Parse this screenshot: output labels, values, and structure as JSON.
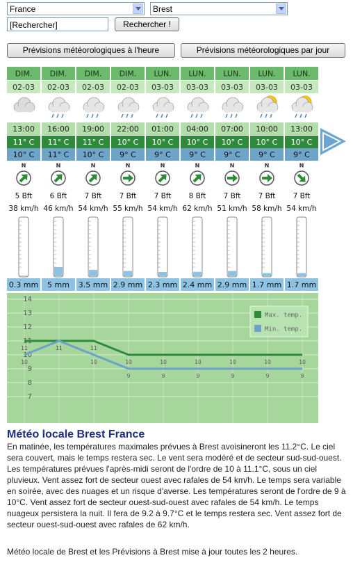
{
  "controls": {
    "country": "France",
    "city": "Brest",
    "search_input": "[Rechercher]",
    "search_button": "Rechercher !",
    "hourly_button": "Prévisions météorologiques à l'heure",
    "daily_button": "Prévisions météorologiques par jour"
  },
  "forecast": {
    "days": [
      "DIM.",
      "DIM.",
      "DIM.",
      "DIM.",
      "LUN.",
      "LUN.",
      "LUN.",
      "LUN.",
      "LUN."
    ],
    "dates": [
      "02-03",
      "02-03",
      "02-03",
      "02-03",
      "03-03",
      "03-03",
      "03-03",
      "03-03",
      "03-03"
    ],
    "times": [
      "13:00",
      "16:00",
      "19:00",
      "22:00",
      "01:00",
      "04:00",
      "07:00",
      "10:00",
      "13:00"
    ],
    "max_temps": [
      "11° C",
      "11° C",
      "11° C",
      "10° C",
      "10° C",
      "10° C",
      "10° C",
      "10° C",
      "10° C"
    ],
    "min_temps": [
      "10° C",
      "11° C",
      "10° C",
      "9° C",
      "9° C",
      "9° C",
      "9° C",
      "9° C",
      "9° C"
    ],
    "compass_label": "N",
    "beaufort": [
      "5 Bft",
      "6 Bft",
      "7 Bft",
      "7 Bft",
      "7 Bft",
      "8 Bft",
      "7 Bft",
      "7 Bft",
      "7 Bft"
    ],
    "wind_speeds": [
      "38 km/h",
      "46 km/h",
      "54 km/h",
      "55 km/h",
      "54 km/h",
      "62 km/h",
      "51 km/h",
      "58 km/h",
      "54 km/h"
    ],
    "rain": {
      "values": [
        0.3,
        5,
        3.5,
        2.9,
        2.3,
        2.4,
        2.9,
        1.7,
        1.7
      ],
      "value_labels": [
        "0.3 mm",
        "5 mm",
        "3.5 mm",
        "2.9 mm",
        "2.3 mm",
        "2.4 mm",
        "2.9 mm",
        "1.7 mm",
        "1.7 mm"
      ]
    }
  },
  "chart_data": {
    "type": "line",
    "categories": [
      null,
      null,
      null,
      null,
      null,
      null,
      null,
      null,
      null
    ],
    "series": [
      {
        "name": "Max. temp.",
        "color": "#2e8b3c",
        "values": [
          11,
          11,
          11,
          10,
          10,
          10,
          10,
          10,
          10
        ]
      },
      {
        "name": "Min. temp.",
        "color": "#6aa2c8",
        "values": [
          10,
          11,
          10,
          9,
          9,
          9,
          9,
          9,
          9
        ]
      }
    ],
    "ylim": [
      5.1,
      14.45
    ],
    "yticks": [
      7,
      8,
      9,
      10,
      11,
      12,
      13,
      14
    ],
    "grid": true,
    "legend": "top-right"
  },
  "article": {
    "title": "Météo locale Brest France",
    "body": "En matinée, les températures maximales prévues à Brest avoisineront les 11.2°C. Le ciel sera couvert, mais le temps restera sec. Le vent sera modéré et de secteur sud-sud-ouest. Les températures prévues l'après-midi seront de l'ordre de 10 à 11.1°C, sous un ciel pluvieux. Vent assez fort de secteur ouest avec rafales de 54 km/h. Le temps sera variable en soirée, avec des nuages et un risque d'averse. Les températures seront de l'ordre de 9 à 10°C. Vent assez fort de secteur ouest-sud-ouest avec rafales de 54 km/h. Le temps nuageux persistera la nuit. Il fera de 9.2 à 9.7°C et le temps restera sec. Vent assez fort de secteur ouest-sud-ouest avec rafales de 62 km/h.",
    "footer": "Météo locale de Brest et les Prévisions à Brest mise à jour toutes les 2 heures."
  }
}
